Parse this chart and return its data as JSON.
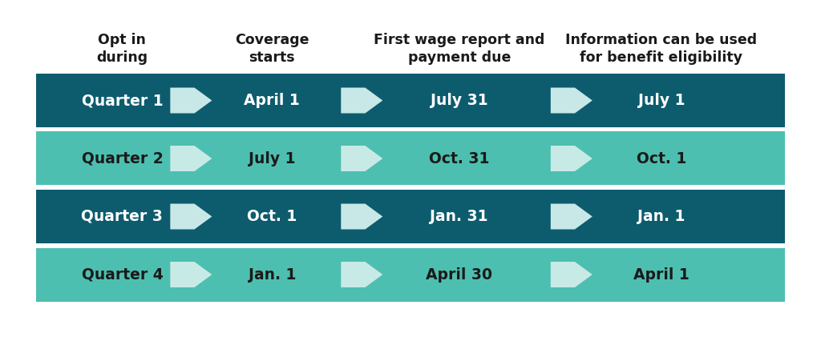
{
  "headers": [
    "Opt in\nduring",
    "Coverage\nstarts",
    "First wage report and\npayment due",
    "Information can be used\nfor benefit eligibility"
  ],
  "rows": [
    {
      "quarter": "Quarter 1",
      "coverage": "April 1",
      "wage": "July 31",
      "info": "July 1",
      "dark": true
    },
    {
      "quarter": "Quarter 2",
      "coverage": "July 1",
      "wage": "Oct. 31",
      "info": "Oct. 1",
      "dark": false
    },
    {
      "quarter": "Quarter 3",
      "coverage": "Oct. 1",
      "wage": "Jan. 31",
      "info": "Jan. 1",
      "dark": true
    },
    {
      "quarter": "Quarter 4",
      "coverage": "Jan. 1",
      "wage": "April 30",
      "info": "April 1",
      "dark": false
    }
  ],
  "dark_color": "#0d5c6e",
  "light_color": "#4dbfb0",
  "arrow_color_dark_row": "#c8e8e8",
  "arrow_color_light_row": "#c8eae6",
  "text_color_dark": "#ffffff",
  "text_color_light": "#1a1a1a",
  "header_text_color": "#1a1a1a",
  "background_color": "#ffffff",
  "fig_width": 10.24,
  "fig_height": 4.36,
  "header_fontsize": 12.5,
  "cell_fontsize": 13.5
}
